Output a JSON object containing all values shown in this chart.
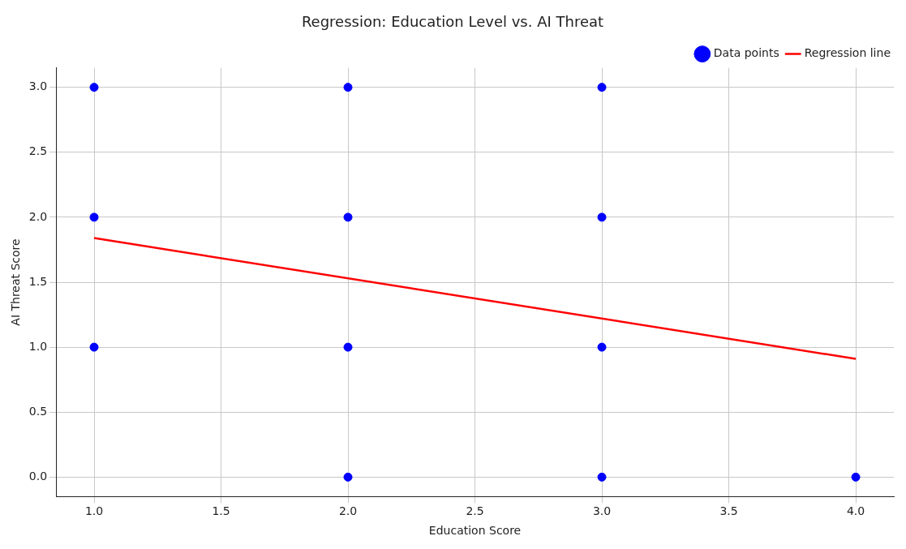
{
  "chart_data": {
    "type": "scatter",
    "title": "Regression: Education Level vs. AI Threat",
    "xlabel": "Education Score",
    "ylabel": "AI Threat Score",
    "xlim": [
      0.85,
      4.15
    ],
    "xticks": [
      {
        "value": 1,
        "label": "1.0"
      },
      {
        "value": 1.5,
        "label": "1.5"
      },
      {
        "value": 2,
        "label": "2.0"
      },
      {
        "value": 2.5,
        "label": "2.5"
      },
      {
        "value": 3,
        "label": "3.0"
      },
      {
        "value": 3.5,
        "label": "3.5"
      },
      {
        "value": 4,
        "label": "4.0"
      }
    ],
    "ylim": [
      -0.15,
      3.15
    ],
    "yticks": [
      {
        "value": 0,
        "label": "0.0"
      },
      {
        "value": 0.5,
        "label": "0.5"
      },
      {
        "value": 1,
        "label": "1.0"
      },
      {
        "value": 1.5,
        "label": "1.5"
      },
      {
        "value": 2,
        "label": "2.0"
      },
      {
        "value": 2.5,
        "label": "2.5"
      },
      {
        "value": 3,
        "label": "3.0"
      }
    ],
    "grid": true,
    "legend": "top right",
    "series": [
      {
        "name": "Data points",
        "marker": "circle",
        "color": "#0000ff",
        "x": [
          1,
          1,
          1,
          2,
          2,
          2,
          2,
          3,
          3,
          3,
          3,
          4
        ],
        "values": [
          3,
          2,
          1,
          3,
          2,
          1,
          0,
          3,
          2,
          1,
          0,
          0
        ]
      },
      {
        "name": "Regression line",
        "type": "line",
        "color": "#ff0000",
        "x": [
          1,
          4
        ],
        "values": [
          1.84,
          0.91
        ]
      }
    ]
  }
}
